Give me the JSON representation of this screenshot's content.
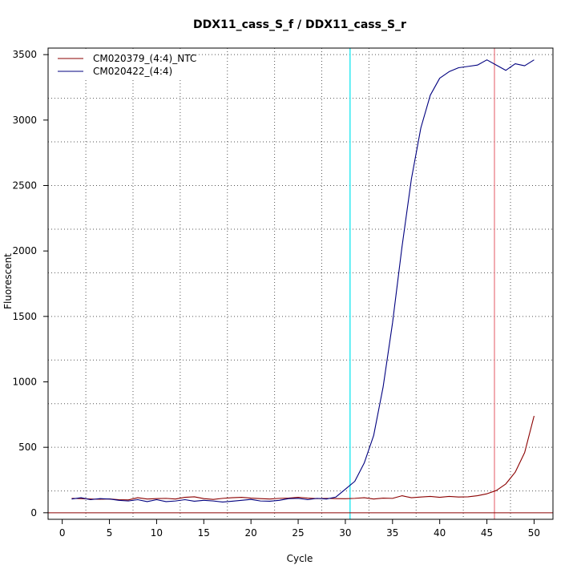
{
  "chart_data": {
    "type": "line",
    "title": "DDX11_cass_S_f / DDX11_cass_S_r",
    "xlabel": "Cycle",
    "ylabel": "Fluorescent",
    "xlim": [
      -1.5,
      52
    ],
    "ylim": [
      -50,
      3550
    ],
    "xticks": [
      0,
      5,
      10,
      15,
      20,
      25,
      30,
      35,
      40,
      45,
      50
    ],
    "yticks": [
      0,
      500,
      1000,
      1500,
      2000,
      2500,
      3000,
      3500
    ],
    "x_minor_gridlines": [
      2.5,
      7.5,
      12.5,
      17.5,
      22.5,
      27.5,
      32.5,
      37.5,
      42.5,
      47.5
    ],
    "y_gridlines": [
      166.7,
      500,
      833.3,
      1166.7,
      1500,
      1833.3,
      2166.7,
      2500,
      2833.3,
      3166.7,
      3500
    ],
    "grid": true,
    "legend_position": "top-left",
    "vertical_lines": [
      {
        "x": 30.5,
        "color": "#00e5ee"
      },
      {
        "x": 45.8,
        "color": "#e8737d"
      }
    ],
    "horizontal_lines": [
      {
        "y": 0,
        "color": "#8b0000"
      }
    ],
    "series": [
      {
        "name": "CM020379_(4:4)_NTC",
        "color": "#8b0000",
        "x": [
          1,
          2,
          3,
          4,
          5,
          6,
          7,
          8,
          9,
          10,
          11,
          12,
          13,
          14,
          15,
          16,
          17,
          18,
          19,
          20,
          21,
          22,
          23,
          24,
          25,
          26,
          27,
          28,
          29,
          30,
          31,
          32,
          33,
          34,
          35,
          36,
          37,
          38,
          39,
          40,
          41,
          42,
          43,
          44,
          45,
          46,
          47,
          48,
          49,
          50
        ],
        "values": [
          110,
          108,
          105,
          103,
          106,
          100,
          98,
          115,
          105,
          108,
          110,
          105,
          118,
          122,
          108,
          102,
          110,
          115,
          118,
          112,
          108,
          105,
          110,
          112,
          118,
          112,
          108,
          110,
          108,
          107,
          110,
          115,
          105,
          112,
          110,
          130,
          115,
          120,
          125,
          118,
          125,
          120,
          122,
          130,
          145,
          170,
          220,
          310,
          460,
          740
        ]
      },
      {
        "name": "CM020422_(4:4)",
        "color": "#00007f",
        "x": [
          1,
          2,
          3,
          4,
          5,
          6,
          7,
          8,
          9,
          10,
          11,
          12,
          13,
          14,
          15,
          16,
          17,
          18,
          19,
          20,
          21,
          22,
          23,
          24,
          25,
          26,
          27,
          28,
          29,
          30,
          31,
          32,
          33,
          34,
          35,
          36,
          37,
          38,
          39,
          40,
          41,
          42,
          43,
          44,
          45,
          46,
          47,
          48,
          49,
          50
        ],
        "values": [
          105,
          115,
          100,
          108,
          105,
          95,
          90,
          100,
          85,
          100,
          85,
          90,
          100,
          88,
          95,
          90,
          82,
          88,
          95,
          102,
          90,
          88,
          95,
          108,
          110,
          100,
          110,
          105,
          120,
          180,
          240,
          380,
          590,
          960,
          1450,
          2030,
          2550,
          2940,
          3190,
          3320,
          3370,
          3400,
          3410,
          3420,
          3460,
          3420,
          3380,
          3430,
          3415,
          3460
        ]
      }
    ]
  }
}
